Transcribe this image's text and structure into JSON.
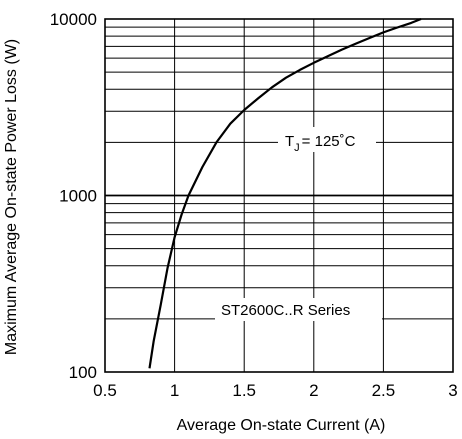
{
  "chart_data": {
    "type": "line",
    "xlabel": "Average On-state Current (A)",
    "ylabel": "Maximum Average On-state Power Loss (W)",
    "xlim": [
      0.5,
      3
    ],
    "ylim": [
      100,
      10000
    ],
    "yscale": "log",
    "grid": true,
    "x_ticks": [
      "0.5",
      "1",
      "1.5",
      "2",
      "2.5",
      "3"
    ],
    "y_ticks": [
      "100",
      "1000",
      "10000"
    ],
    "annotations": {
      "temperature_prefix": "T",
      "temperature_subscript": "J",
      "temperature_suffix": "= 125˚C",
      "series_label": "ST2600C..R Series"
    },
    "series": [
      {
        "x": [
          0.82,
          0.85,
          0.9,
          0.95,
          1.0,
          1.05,
          1.1,
          1.2,
          1.3,
          1.4,
          1.5,
          1.6,
          1.7,
          1.8,
          1.9,
          2.0,
          2.1,
          2.2,
          2.3,
          2.4,
          2.5,
          2.6,
          2.7,
          2.77
        ],
        "y": [
          105,
          150,
          240,
          390,
          580,
          780,
          1000,
          1450,
          2000,
          2550,
          3050,
          3550,
          4100,
          4650,
          5150,
          5650,
          6150,
          6700,
          7250,
          7800,
          8400,
          8950,
          9500,
          10000
        ]
      }
    ]
  }
}
